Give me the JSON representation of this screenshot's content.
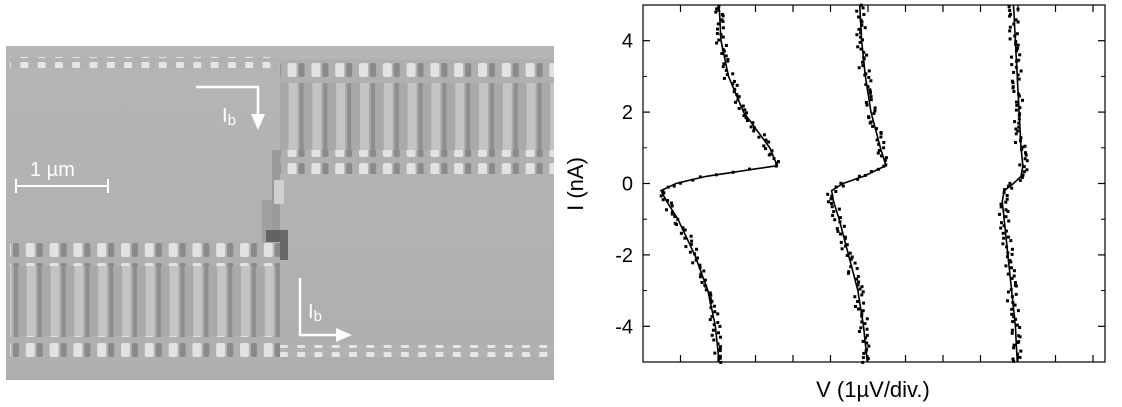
{
  "figure": {
    "micrograph": {
      "scale_bar_label": "1 µm",
      "current_label_top": "I",
      "current_label_top_sub": "b",
      "current_label_bottom": "I",
      "current_label_bottom_sub": "b"
    }
  },
  "chart_data": {
    "type": "scatter",
    "xlabel": "V (1µV/div.)",
    "ylabel": "I (nA)",
    "ylim": [
      -5,
      5
    ],
    "y_ticks": [
      "4",
      "2",
      "0",
      "-2",
      "-4"
    ],
    "x_tick_labels": "none",
    "x_unit_per_division": "1 µV",
    "grid": false,
    "legend": "none",
    "series": [
      {
        "marker": "points + fitted line",
        "x_offset_div": 0.0,
        "I": [
          -5,
          -4,
          -3,
          -2,
          -1,
          -0.5,
          -0.2,
          0,
          0.2,
          0.5,
          1,
          2,
          3,
          4,
          5
        ],
        "V": [
          1.95,
          1.85,
          1.65,
          1.3,
          0.85,
          0.55,
          0.4,
          0.8,
          1.6,
          3.5,
          3.3,
          2.6,
          2.2,
          2.0,
          1.95
        ]
      },
      {
        "marker": "points + fitted line",
        "x_offset_div": 4.3,
        "I": [
          -5,
          -4,
          -3,
          -2,
          -1,
          -0.5,
          -0.2,
          0,
          0.2,
          0.5,
          1,
          2,
          3,
          4,
          5
        ],
        "V": [
          1.6,
          1.5,
          1.35,
          1.1,
          0.85,
          0.7,
          0.65,
          0.95,
          1.5,
          2.1,
          1.95,
          1.7,
          1.55,
          1.45,
          1.4
        ]
      },
      {
        "marker": "points + fitted line",
        "x_offset_div": 8.9,
        "I": [
          -5,
          -4,
          -3,
          -2,
          -1,
          -0.5,
          -0.2,
          0,
          0.2,
          0.5,
          1,
          2,
          3,
          4,
          5
        ],
        "V": [
          1.0,
          0.95,
          0.85,
          0.75,
          0.65,
          0.6,
          0.65,
          0.9,
          1.1,
          1.15,
          1.1,
          1.05,
          1.0,
          0.95,
          0.9
        ]
      }
    ]
  }
}
